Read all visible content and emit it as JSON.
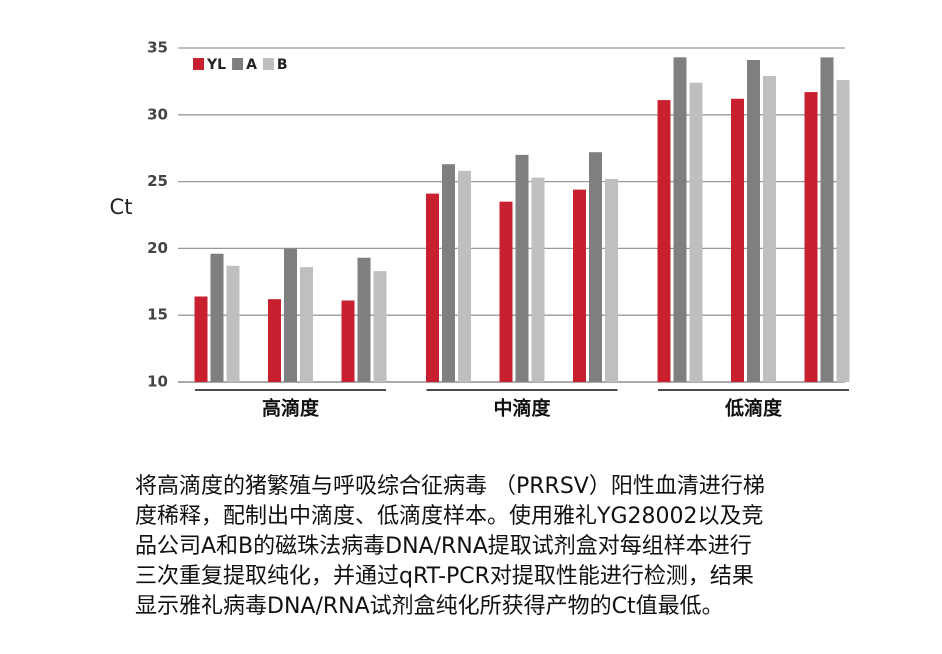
{
  "chart_data": {
    "type": "bar",
    "ylabel": "Ct",
    "categories": [
      null,
      null,
      null,
      null,
      null,
      null,
      null,
      null,
      null
    ],
    "groups": [
      "高滴度",
      "中滴度",
      "低滴度"
    ],
    "series": [
      {
        "name": "YL",
        "color": "#c8202f",
        "values": [
          16.4,
          16.2,
          16.1,
          24.1,
          23.5,
          24.4,
          31.1,
          31.2,
          31.7
        ]
      },
      {
        "name": "A",
        "color": "#7f7f7f",
        "values": [
          19.6,
          20.0,
          19.3,
          26.3,
          27.0,
          27.2,
          34.3,
          34.1,
          34.3
        ]
      },
      {
        "name": "B",
        "color": "#bfbfbf",
        "values": [
          18.7,
          18.6,
          18.3,
          25.8,
          25.3,
          25.2,
          32.4,
          32.9,
          32.6
        ]
      }
    ],
    "ylim": [
      10,
      35
    ],
    "yticks": [
      10,
      15,
      20,
      25,
      30,
      35
    ],
    "grid": true,
    "legend": "top-left"
  },
  "caption": [
    "将高滴度的猪繁殖与呼吸综合征病毒 （PRRSV）阳性血清进行梯",
    "度稀释，配制出中滴度、低滴度样本。使用雅礼YG28002以及竞",
    "品公司A和B的磁珠法病毒DNA/RNA提取试剂盒对每组样本进行",
    "三次重复提取纯化，并通过qRT-PCR对提取性能进行检测，结果",
    "显示雅礼病毒DNA/RNA试剂盒纯化所获得产物的Ct值最低。"
  ]
}
